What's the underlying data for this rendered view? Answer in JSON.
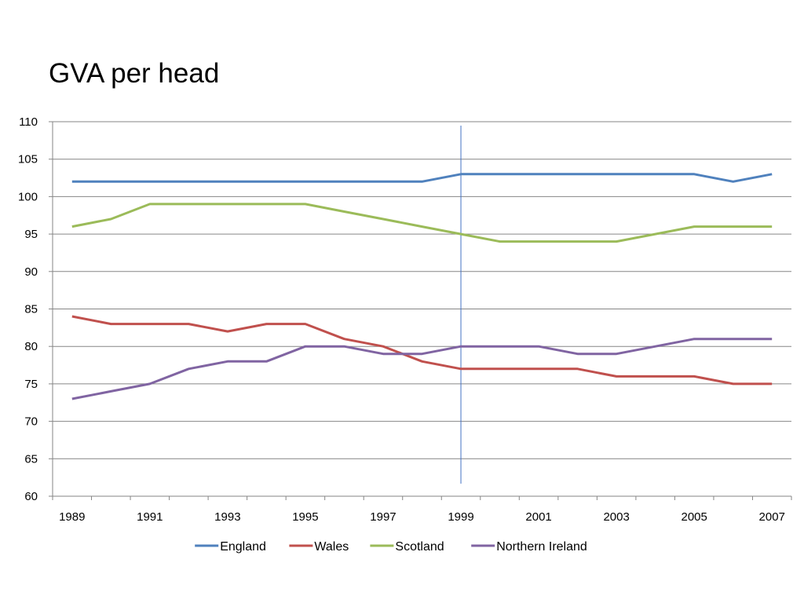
{
  "slide": {
    "title": "GVA per head"
  },
  "chart_data": {
    "type": "line",
    "title": "GVA per head",
    "xlabel": "",
    "ylabel": "",
    "x": [
      1989,
      1990,
      1991,
      1992,
      1993,
      1994,
      1995,
      1996,
      1997,
      1998,
      1999,
      2000,
      2001,
      2002,
      2003,
      2004,
      2005,
      2006,
      2007
    ],
    "x_tick_labels": [
      "1989",
      "1991",
      "1993",
      "1995",
      "1997",
      "1999",
      "2001",
      "2003",
      "2005",
      "2007"
    ],
    "y_tick_labels": [
      "60",
      "65",
      "70",
      "75",
      "80",
      "85",
      "90",
      "95",
      "100",
      "105",
      "110"
    ],
    "ylim": [
      60,
      110
    ],
    "y_major_step": 5,
    "grid": "horizontal",
    "legend_position": "bottom",
    "marker_line": {
      "x": 1999,
      "color": "#4472c4"
    },
    "series": [
      {
        "name": "England",
        "color": "#4f81bd",
        "values": [
          102,
          102,
          102,
          102,
          102,
          102,
          102,
          102,
          102,
          102,
          103,
          103,
          103,
          103,
          103,
          103,
          103,
          102,
          103
        ]
      },
      {
        "name": "Wales",
        "color": "#c0504d",
        "values": [
          84,
          83,
          83,
          83,
          82,
          83,
          83,
          81,
          80,
          78,
          77,
          77,
          77,
          77,
          76,
          76,
          76,
          75,
          75
        ]
      },
      {
        "name": "Scotland",
        "color": "#9bbb59",
        "values": [
          96,
          97,
          99,
          99,
          99,
          99,
          99,
          98,
          97,
          96,
          95,
          94,
          94,
          94,
          94,
          95,
          96,
          96,
          96
        ]
      },
      {
        "name": "Northern Ireland",
        "color": "#8064a2",
        "values": [
          73,
          74,
          75,
          77,
          78,
          78,
          80,
          80,
          79,
          79,
          80,
          80,
          80,
          79,
          79,
          80,
          81,
          81,
          81
        ]
      }
    ]
  }
}
